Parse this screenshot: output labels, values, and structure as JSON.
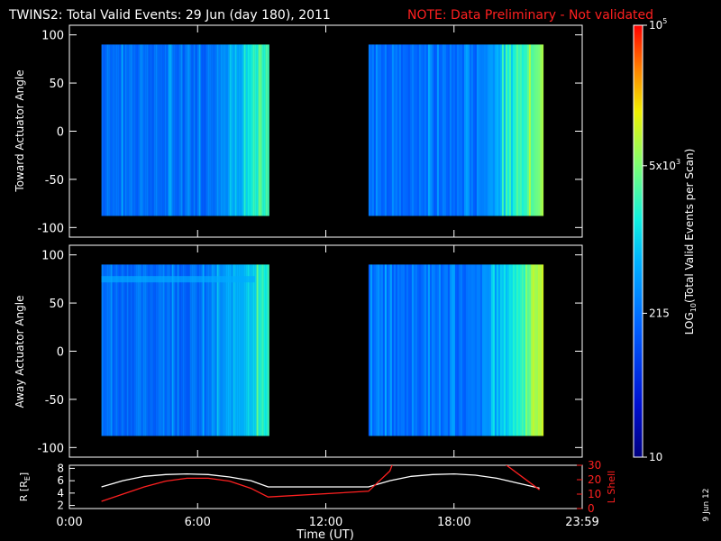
{
  "header": {
    "title": "TWINS2: Total Valid Events: 29 Jun (day 180), 2011",
    "note": "NOTE: Data Preliminary - Not validated",
    "note_color": "#ff2020"
  },
  "footer": {
    "date_stamp": "9 Jun 12"
  },
  "chart_data": [
    {
      "type": "heatmap",
      "name": "toward-panel",
      "ylabel": "Toward Actuator Angle",
      "ylim": [
        -110,
        110
      ],
      "yticks": [
        100,
        50,
        0,
        -50,
        -100
      ],
      "x_range_hours": [
        0,
        24
      ],
      "data_blocks": [
        {
          "start_hour": 1.5,
          "end_hour": 9.3,
          "angle_range": [
            -88,
            90
          ]
        },
        {
          "start_hour": 14.0,
          "end_hour": 22.1,
          "angle_range": [
            -88,
            90
          ]
        }
      ],
      "color_scale": "log",
      "color_range": [
        10,
        100000
      ]
    },
    {
      "type": "heatmap",
      "name": "away-panel",
      "ylabel": "Away Actuator Angle",
      "ylim": [
        -110,
        110
      ],
      "yticks": [
        100,
        50,
        0,
        -50,
        -100
      ],
      "x_range_hours": [
        0,
        24
      ],
      "data_blocks": [
        {
          "start_hour": 1.5,
          "end_hour": 9.3,
          "angle_range": [
            -88,
            90
          ]
        },
        {
          "start_hour": 14.0,
          "end_hour": 22.1,
          "angle_range": [
            -88,
            90
          ]
        }
      ],
      "color_scale": "log",
      "color_range": [
        10,
        100000
      ]
    },
    {
      "type": "line",
      "name": "orbit-panel",
      "ylabel_left": "R [R",
      "ylabel_left_sub": "E",
      "ylabel_left_end": "]",
      "ylabel_right": "L Shell",
      "ylim_left": [
        1.5,
        8.5
      ],
      "yticks_left": [
        8,
        6,
        4,
        2
      ],
      "ylim_right": [
        0,
        30
      ],
      "yticks_right": [
        30,
        20,
        10,
        0
      ],
      "xlabel": "Time (UT)",
      "xticks": [
        "0:00",
        "6:00",
        "12:00",
        "18:00",
        "23:59"
      ],
      "xtick_hours": [
        0,
        6,
        12,
        18,
        24
      ],
      "series": [
        {
          "axis": "left",
          "color": "#ffffff",
          "x": [
            1.5,
            2.5,
            3.5,
            4.5,
            5.5,
            6.5,
            7.5,
            8.5,
            9.3,
            14.0,
            15.0,
            16.0,
            17.0,
            18.0,
            19.0,
            20.0,
            21.0,
            22.0
          ],
          "y": [
            5.0,
            6.0,
            6.7,
            7.0,
            7.1,
            7.0,
            6.6,
            6.0,
            5.0,
            5.0,
            6.0,
            6.7,
            7.0,
            7.1,
            6.9,
            6.4,
            5.6,
            4.8
          ]
        },
        {
          "axis": "right",
          "color": "#ff2020",
          "x": [
            1.5,
            2.5,
            3.5,
            4.5,
            5.5,
            6.5,
            7.5,
            8.5,
            9.3,
            14.0,
            15.0,
            15.2,
            20.1,
            22.0
          ],
          "y": [
            5,
            10,
            15,
            19,
            21,
            21,
            19,
            14,
            8,
            12,
            26,
            34,
            34,
            13
          ]
        }
      ]
    }
  ],
  "colorbar": {
    "label": "LOG",
    "label_sub": "10",
    "label_rest": "(Total Valid  Events per Scan)",
    "ticks": [
      {
        "value": 10,
        "text": "10"
      },
      {
        "value": 215,
        "text": "215"
      },
      {
        "value": 5000,
        "text": "5x10",
        "sup": "3"
      },
      {
        "value": 100000,
        "text": "10",
        "sup": "5"
      }
    ],
    "range": [
      10,
      100000
    ],
    "scale": "log"
  }
}
